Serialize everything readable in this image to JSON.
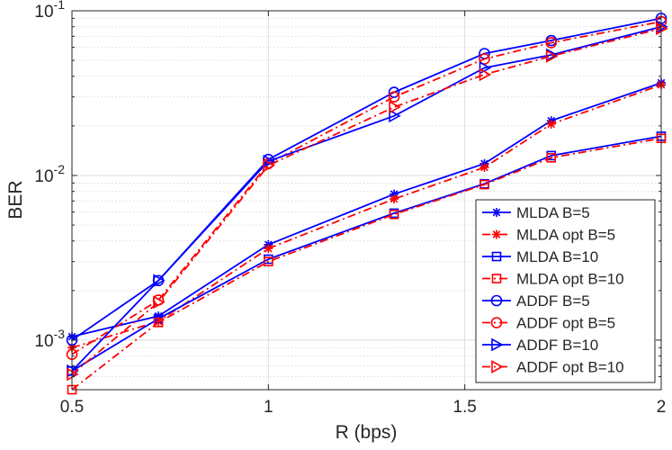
{
  "chart_data": {
    "type": "line",
    "xlabel": "R (bps)",
    "ylabel": "BER",
    "x_scale": "linear",
    "y_scale": "log",
    "xlim": [
      0.5,
      2
    ],
    "ylim": [
      0.0005,
      0.1
    ],
    "x_ticks": [
      {
        "value": 0.5,
        "label": "0.5"
      },
      {
        "value": 1,
        "label": "1"
      },
      {
        "value": 1.5,
        "label": "1.5"
      },
      {
        "value": 2,
        "label": "2"
      }
    ],
    "y_ticks": [
      {
        "value": 0.001,
        "base": "10",
        "exp": "-3"
      },
      {
        "value": 0.01,
        "base": "10",
        "exp": "-2"
      },
      {
        "value": 0.1,
        "base": "10",
        "exp": "-1"
      }
    ],
    "grid": true,
    "legend_position": "bottom-right",
    "x": [
      0.5,
      0.72,
      1.0,
      1.32,
      1.55,
      1.72,
      2.0
    ],
    "series": [
      {
        "name": "MLDA B=5",
        "color": "#0000ff",
        "dash": "solid",
        "marker": "star",
        "values": [
          0.00105,
          0.0014,
          0.0038,
          0.0077,
          0.0118,
          0.0215,
          0.0365
        ]
      },
      {
        "name": "MLDA opt B=5",
        "color": "#ff0000",
        "dash": "dashdot",
        "marker": "star",
        "values": [
          0.0009,
          0.0013,
          0.0036,
          0.0072,
          0.0112,
          0.0205,
          0.0355
        ]
      },
      {
        "name": "MLDA B=10",
        "color": "#0000ff",
        "dash": "solid",
        "marker": "square",
        "values": [
          0.00065,
          0.00135,
          0.0031,
          0.0059,
          0.0089,
          0.0132,
          0.0173
        ]
      },
      {
        "name": "MLDA opt B=10",
        "color": "#ff0000",
        "dash": "dashdot",
        "marker": "square",
        "values": [
          0.0005,
          0.00128,
          0.003,
          0.0058,
          0.0088,
          0.0128,
          0.0168
        ]
      },
      {
        "name": "ADDF B=5",
        "color": "#0000ff",
        "dash": "solid",
        "marker": "circle",
        "values": [
          0.001,
          0.0023,
          0.0125,
          0.032,
          0.055,
          0.066,
          0.09
        ]
      },
      {
        "name": "ADDF opt B=5",
        "color": "#ff0000",
        "dash": "dashdot",
        "marker": "circle",
        "values": [
          0.00082,
          0.00175,
          0.0118,
          0.03,
          0.051,
          0.064,
          0.086
        ]
      },
      {
        "name": "ADDF B=10",
        "color": "#0000ff",
        "dash": "solid",
        "marker": "triangle-right",
        "values": [
          0.00065,
          0.0023,
          0.0122,
          0.023,
          0.045,
          0.054,
          0.08
        ]
      },
      {
        "name": "ADDF opt B=10",
        "color": "#ff0000",
        "dash": "dashdot",
        "marker": "triangle-right",
        "values": [
          0.00062,
          0.0017,
          0.0115,
          0.026,
          0.041,
          0.053,
          0.078
        ]
      }
    ]
  }
}
